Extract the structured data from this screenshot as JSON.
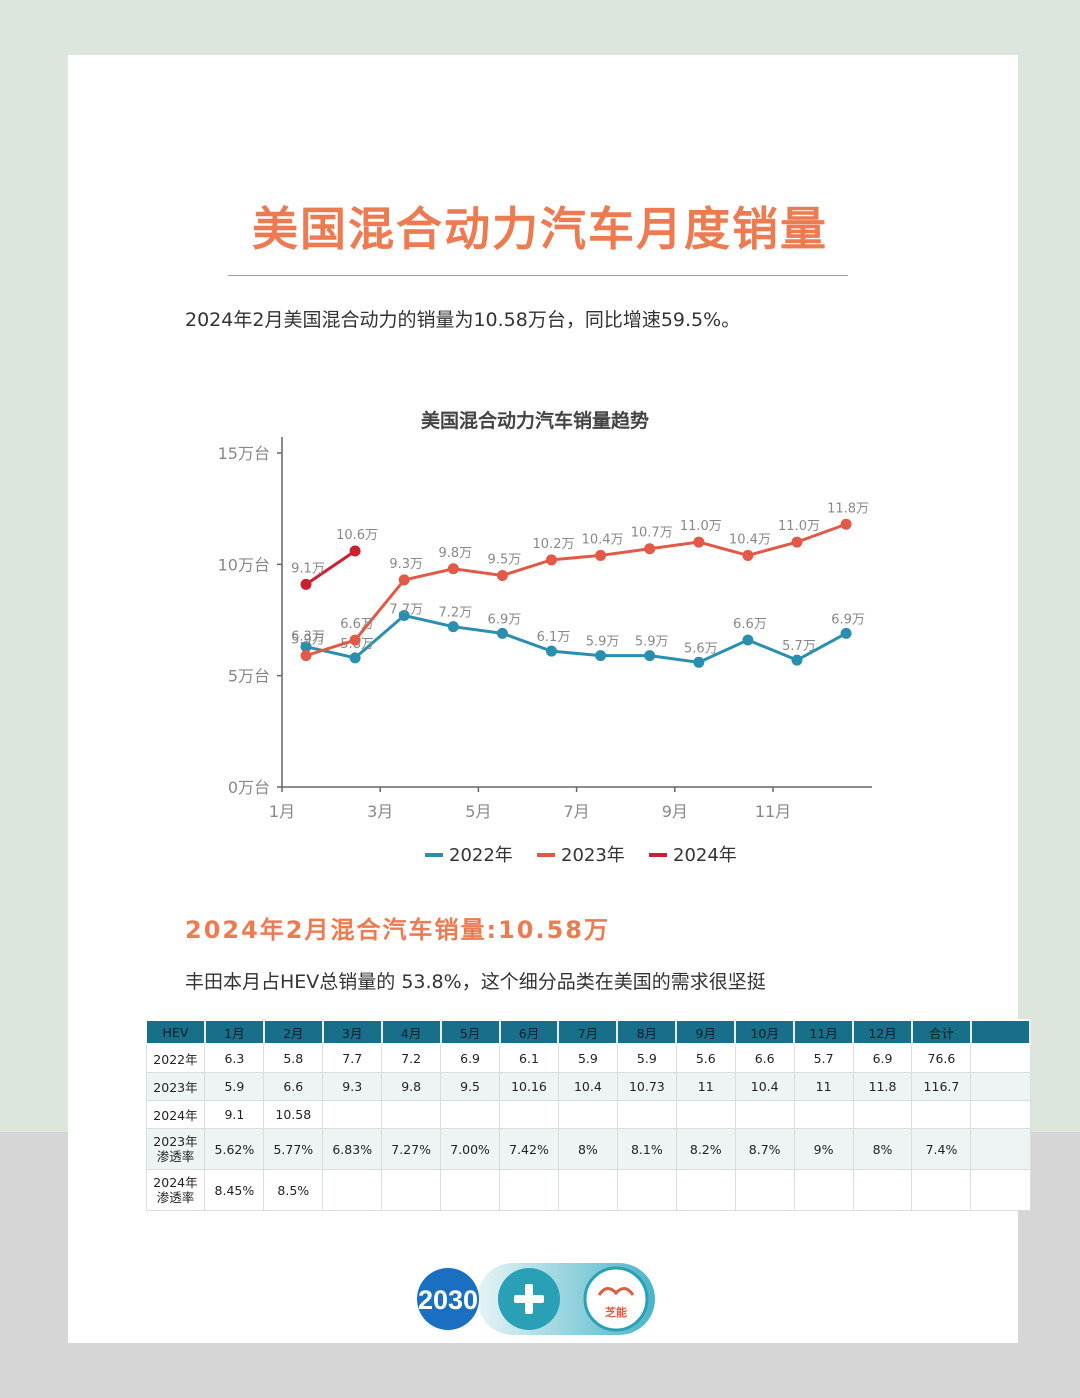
{
  "page": {
    "title": "美国混合动力汽车月度销量",
    "intro": "2024年2月美国混合动力的销量为10.58万台，同比增速59.5%。",
    "subtitle": "2024年2月混合汽车销量:10.58万",
    "desc": "丰田本月占HEV总销量的 53.8%，这个细分品类在美国的需求很坚挺",
    "logo_text": "2030",
    "logo_text2": "芝能"
  },
  "chart_data": {
    "type": "line",
    "title": "美国混合动力汽车销量趋势",
    "y_ticks": [
      "15万台",
      "10万台",
      "5万台",
      "0万台"
    ],
    "y_tick_values": [
      15,
      10,
      5,
      0
    ],
    "x_ticks": [
      "1月",
      "3月",
      "5月",
      "7月",
      "9月",
      "11月"
    ],
    "x_tick_months": [
      1,
      3,
      5,
      7,
      9,
      11
    ],
    "ylim": [
      0,
      15
    ],
    "series": [
      {
        "name": "2022年",
        "color": "#2a8fae",
        "values": [
          6.3,
          5.8,
          7.7,
          7.2,
          6.9,
          6.1,
          5.9,
          5.9,
          5.6,
          6.6,
          5.7,
          6.9
        ],
        "labels": [
          "6.3万",
          "5.8万",
          "7.7万",
          "7.2万",
          "6.9万",
          "6.1万",
          "5.9万",
          "5.9万",
          "5.6万",
          "6.6万",
          "5.7万",
          "6.9万"
        ]
      },
      {
        "name": "2023年",
        "color": "#e05a47",
        "values": [
          5.9,
          6.6,
          9.3,
          9.8,
          9.5,
          10.2,
          10.4,
          10.7,
          11.0,
          10.4,
          11.0,
          11.8
        ],
        "labels": [
          "5.9万",
          "6.6万",
          "9.3万",
          "9.8万",
          "9.5万",
          "10.2万",
          "10.4万",
          "10.7万",
          "11.0万",
          "10.4万",
          "11.0万",
          "11.8万"
        ]
      },
      {
        "name": "2024年",
        "color": "#cc1f2f",
        "values": [
          9.1,
          10.6
        ],
        "labels": [
          "9.1万",
          "10.6万"
        ]
      }
    ]
  },
  "table": {
    "headers": [
      "HEV",
      "1月",
      "2月",
      "3月",
      "4月",
      "5月",
      "6月",
      "7月",
      "8月",
      "9月",
      "10月",
      "11月",
      "12月",
      "合计",
      ""
    ],
    "rows": [
      [
        "2022年",
        "6.3",
        "5.8",
        "7.7",
        "7.2",
        "6.9",
        "6.1",
        "5.9",
        "5.9",
        "5.6",
        "6.6",
        "5.7",
        "6.9",
        "76.6",
        ""
      ],
      [
        "2023年",
        "5.9",
        "6.6",
        "9.3",
        "9.8",
        "9.5",
        "10.16",
        "10.4",
        "10.73",
        "11",
        "10.4",
        "11",
        "11.8",
        "116.7",
        ""
      ],
      [
        "2024年",
        "9.1",
        "10.58",
        "",
        "",
        "",
        "",
        "",
        "",
        "",
        "",
        "",
        "",
        "",
        ""
      ],
      [
        "2023年\n渗透率",
        "5.62%",
        "5.77%",
        "6.83%",
        "7.27%",
        "7.00%",
        "7.42%",
        "8%",
        "8.1%",
        "8.2%",
        "8.7%",
        "9%",
        "8%",
        "7.4%",
        ""
      ],
      [
        "2024年\n渗透率",
        "8.45%",
        "8.5%",
        "",
        "",
        "",
        "",
        "",
        "",
        "",
        "",
        "",
        "",
        "",
        ""
      ]
    ]
  }
}
